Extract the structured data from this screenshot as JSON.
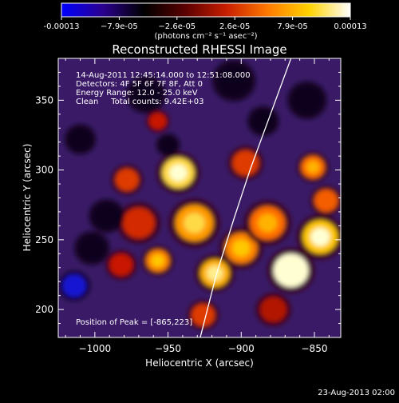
{
  "colorbar": {
    "stops": [
      "#0000ff",
      "#2a008f",
      "#000000",
      "#5a0000",
      "#c81e00",
      "#ff7a00",
      "#ffd200",
      "#ffffff"
    ],
    "tick_labels": [
      "-0.00013",
      "−7.9e-05",
      "−2.6e-05",
      "2.6e-05",
      "7.9e-05",
      "0.00013"
    ],
    "unit_label": "(photons cm⁻² s⁻¹ asec⁻²)"
  },
  "chart": {
    "title": "Reconstructed RHESSI Image",
    "info_lines": [
      "14-Aug-2011 12:45:14.000 to 12:51:08.000",
      "Detectors: 4F 5F 6F 7F 8F, Att 0",
      "Energy Range: 12.0 - 25.0 keV",
      "Clean     Total counts: 9.42E+03"
    ],
    "peak_label": "Position of Peak = [-865,223]"
  },
  "footer": {
    "date": "23-Aug-2013 02:00"
  },
  "chart_data": {
    "type": "heatmap",
    "title": "Reconstructed RHESSI Image",
    "xlabel": "Heliocentric X (arcsec)",
    "ylabel": "Heliocentric Y (arcsec)",
    "xlim": [
      -1025,
      -832
    ],
    "ylim": [
      180,
      380
    ],
    "x_ticks": [
      -1000,
      -950,
      -900,
      -850
    ],
    "x_tick_labels": [
      "−1000",
      "−950",
      "−900",
      "−850"
    ],
    "y_ticks": [
      200,
      250,
      300,
      350
    ],
    "y_tick_labels": [
      "200",
      "250",
      "300",
      "350"
    ],
    "value_range": [
      -0.00013,
      0.00013
    ],
    "limb_curve": [
      [
        -928,
        180
      ],
      [
        -917,
        225
      ],
      [
        -905,
        265
      ],
      [
        -894,
        300
      ],
      [
        -880,
        340
      ],
      [
        -866,
        380
      ]
    ],
    "peak": [
      -865,
      223
    ],
    "blobs": [
      {
        "x": -943,
        "y": 298,
        "r": 11,
        "v": 0.9
      },
      {
        "x": -932,
        "y": 262,
        "r": 13,
        "v": 0.75
      },
      {
        "x": -918,
        "y": 226,
        "r": 10,
        "v": 0.8
      },
      {
        "x": -900,
        "y": 244,
        "r": 11,
        "v": 0.7
      },
      {
        "x": -882,
        "y": 262,
        "r": 12,
        "v": 0.65
      },
      {
        "x": -866,
        "y": 228,
        "r": 12,
        "v": 1.0
      },
      {
        "x": -846,
        "y": 252,
        "r": 12,
        "v": 0.85
      },
      {
        "x": -842,
        "y": 278,
        "r": 8,
        "v": 0.6
      },
      {
        "x": -851,
        "y": 302,
        "r": 8,
        "v": 0.65
      },
      {
        "x": -978,
        "y": 293,
        "r": 8,
        "v": 0.5
      },
      {
        "x": -970,
        "y": 262,
        "r": 11,
        "v": 0.45
      },
      {
        "x": -957,
        "y": 235,
        "r": 8,
        "v": 0.7
      },
      {
        "x": -982,
        "y": 232,
        "r": 8,
        "v": 0.4
      },
      {
        "x": -897,
        "y": 305,
        "r": 9,
        "v": 0.5
      },
      {
        "x": -957,
        "y": 335,
        "r": 6,
        "v": 0.4
      },
      {
        "x": -878,
        "y": 200,
        "r": 9,
        "v": 0.35
      },
      {
        "x": -926,
        "y": 196,
        "r": 8,
        "v": 0.5
      },
      {
        "x": -1014,
        "y": 217,
        "r": 8,
        "v": -0.95
      },
      {
        "x": -1002,
        "y": 244,
        "r": 9,
        "v": -0.5
      },
      {
        "x": -992,
        "y": 267,
        "r": 9,
        "v": -0.4
      },
      {
        "x": -965,
        "y": 354,
        "r": 10,
        "v": -0.45
      },
      {
        "x": -950,
        "y": 318,
        "r": 6,
        "v": -0.35
      },
      {
        "x": -905,
        "y": 364,
        "r": 11,
        "v": -0.4
      },
      {
        "x": -885,
        "y": 335,
        "r": 8,
        "v": -0.35
      },
      {
        "x": -855,
        "y": 350,
        "r": 10,
        "v": -0.4
      },
      {
        "x": -1010,
        "y": 322,
        "r": 8,
        "v": -0.3
      }
    ]
  }
}
